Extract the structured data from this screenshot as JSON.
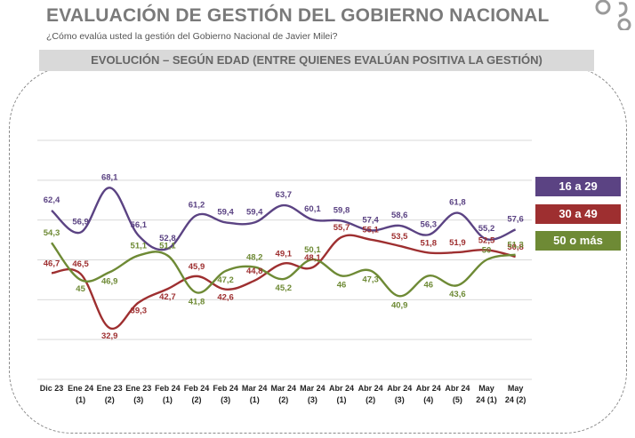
{
  "header": {
    "title": "EVALUACIÓN DE GESTIÓN DEL GOBIERNO NACIONAL",
    "subtitle": "¿Cómo evalúa usted la gestión del Gobierno Nacional de Javier Milei?",
    "banner": "EVOLUCIÓN – SEGÚN EDAD (ENTRE QUIENES EVALÚAN POSITIVA LA GESTIÓN)"
  },
  "colors": {
    "title": "#7a7a7a",
    "banner_bg": "#d9d9d9",
    "grid": "#d9d9d9"
  },
  "chart_data": {
    "type": "line",
    "categories": [
      [
        "Dic 23"
      ],
      [
        "Ene 24",
        "(1)"
      ],
      [
        "Ene 23",
        "(2)"
      ],
      [
        "Ene 23",
        "(3)"
      ],
      [
        "Feb 24",
        "(1)"
      ],
      [
        "Feb 24",
        "(2)"
      ],
      [
        "Feb 24",
        "(3)"
      ],
      [
        "Mar 24",
        "(1)"
      ],
      [
        "Mar 24",
        "(2)"
      ],
      [
        "Mar 24",
        "(3)"
      ],
      [
        "Abr 24",
        "(1)"
      ],
      [
        "Abr 24",
        "(2)"
      ],
      [
        "Abr 24",
        "(3)"
      ],
      [
        "Abr 24",
        "(4)"
      ],
      [
        "Abr 24",
        "(5)"
      ],
      [
        "May",
        "24 (1)"
      ],
      [
        "May",
        "24 (2)"
      ]
    ],
    "series": [
      {
        "name": "16 a 29",
        "color": "#5b4383",
        "values": [
          62.4,
          56.9,
          68.1,
          56.1,
          52.8,
          61.2,
          59.4,
          59.4,
          63.7,
          60.1,
          59.8,
          57.4,
          58.6,
          56.3,
          61.8,
          55.2,
          57.6
        ],
        "labels": [
          "62,4",
          "56,9",
          "68,1",
          "56,1",
          "52,8",
          "61,2",
          "59,4",
          "59,4",
          "63,7",
          "60,1",
          "59,8",
          "57,4",
          "58,6",
          "56,3",
          "61,8",
          "55,2",
          "57,6"
        ]
      },
      {
        "name": "30 a 49",
        "color": "#9e2f30",
        "values": [
          46.7,
          46.5,
          32.9,
          39.3,
          42.7,
          45.9,
          42.6,
          44.8,
          49.1,
          48.1,
          55.7,
          55.1,
          53.5,
          51.8,
          51.9,
          52.5,
          50.8
        ],
        "labels": [
          "46,7",
          "46,5",
          "32,9",
          "39,3",
          "42,7",
          "45,9",
          "42,6",
          "44,8",
          "49,1",
          "48,1",
          "55,7",
          "55,1",
          "53,5",
          "51,8",
          "51,9",
          "52,5",
          "50,8"
        ]
      },
      {
        "name": "50 o más",
        "color": "#6e8a35",
        "values": [
          54.3,
          45,
          46.9,
          51.1,
          51.1,
          41.8,
          47.2,
          48.2,
          45.2,
          50.1,
          46,
          47.3,
          40.9,
          46,
          43.6,
          50,
          51.3
        ],
        "labels": [
          "54,3",
          "45",
          "46,9",
          "51,1",
          "51,1",
          "41,8",
          "47,2",
          "48,2",
          "45,2",
          "50,1",
          "46",
          "47,3",
          "40,9",
          "46",
          "43,6",
          "50",
          "51,3"
        ]
      }
    ],
    "ylim": [
      20,
      80
    ],
    "grid": true,
    "legend_position": "right"
  }
}
